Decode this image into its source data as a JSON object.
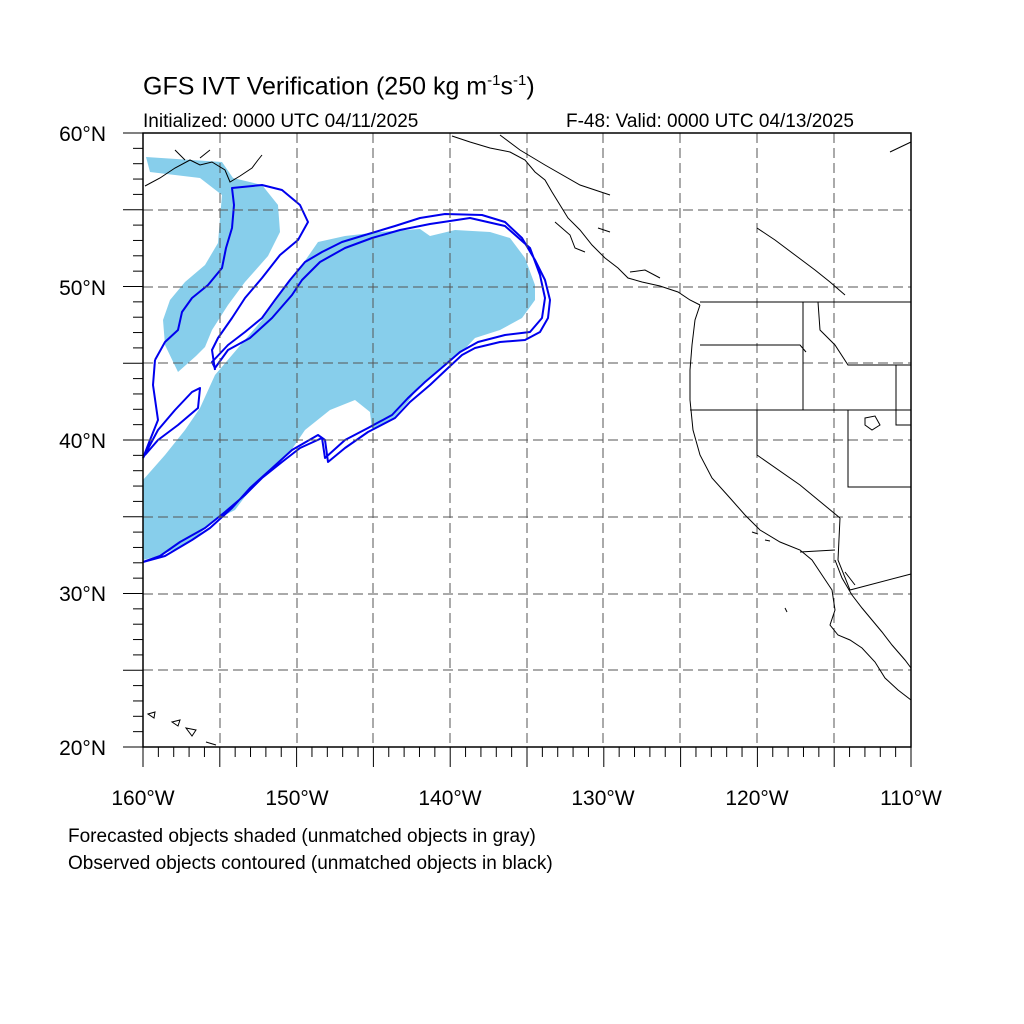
{
  "title": {
    "main": "GFS IVT Verification (250 kg m",
    "exp1": "-1",
    "mid": "s",
    "exp2": "-1",
    "end": ")"
  },
  "subtitle_left": "Initialized: 0000 UTC 04/11/2025",
  "subtitle_right": "F-48: Valid: 0000 UTC 04/13/2025",
  "axes": {
    "lon_labels": [
      "160°W",
      "150°W",
      "140°W",
      "130°W",
      "120°W",
      "110°W"
    ],
    "lon_values": [
      -160,
      -150,
      -140,
      -130,
      -120,
      -110
    ],
    "lat_labels": [
      "20°N",
      "30°N",
      "40°N",
      "50°N",
      "60°N"
    ],
    "lat_values": [
      20,
      30,
      40,
      50,
      60
    ],
    "lon_range": [
      -160,
      -110
    ],
    "lat_range": [
      20,
      60
    ],
    "grid": "dashed, every 5 degrees"
  },
  "footer": [
    "Forecasted objects shaded (unmatched objects in gray)",
    "Observed objects contoured (unmatched objects in black)"
  ],
  "colors": {
    "forecast_fill": "#87ceeb",
    "observed_contour": "#0000ee",
    "coastline": "#000000",
    "grid": "#555555"
  },
  "map_features": {
    "forecast_object_shading": "sky blue, matched",
    "observed_object_contour": "blue, matched",
    "coastlines": "North America west coast, Alaska, Hawaii",
    "boundaries": "US state and Canada border lines"
  }
}
